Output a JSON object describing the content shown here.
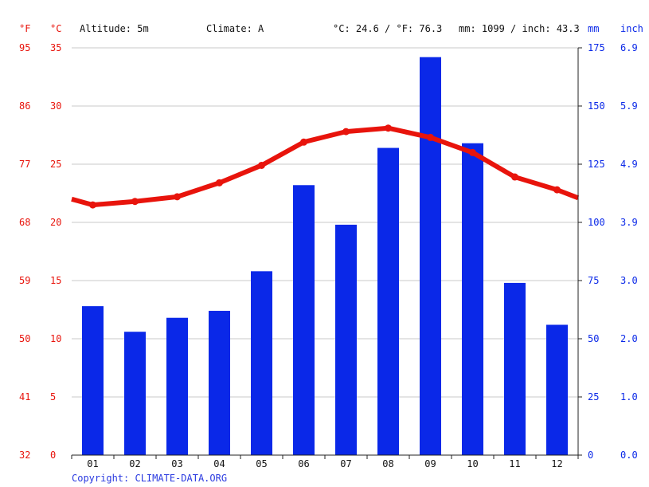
{
  "header": {
    "unit_f": "°F",
    "unit_c": "°C",
    "altitude": "Altitude: 5m",
    "climate": "Climate: A",
    "temp_avg": "°C: 24.6 / °F: 76.3",
    "precip_avg": "mm: 1099 / inch: 43.3",
    "unit_mm": "mm",
    "unit_inch": "inch"
  },
  "footer": {
    "copyright": "Copyright: CLIMATE-DATA.ORG"
  },
  "chart_data": {
    "type": "bar",
    "categories": [
      "01",
      "02",
      "03",
      "04",
      "05",
      "06",
      "07",
      "08",
      "09",
      "10",
      "11",
      "12"
    ],
    "series": [
      {
        "type": "bar",
        "axis": "right",
        "unit": "mm",
        "color": "#0a28e8",
        "values": [
          64,
          53,
          59,
          62,
          79,
          116,
          99,
          132,
          171,
          134,
          74,
          56
        ]
      },
      {
        "type": "line",
        "axis": "left",
        "unit": "°C",
        "color": "#e8140c",
        "values": [
          21.5,
          21.8,
          22.2,
          23.4,
          24.9,
          26.9,
          27.8,
          28.1,
          27.3,
          26.0,
          23.9,
          22.8
        ]
      }
    ],
    "line_edge_values": {
      "start": 22.0,
      "end": 22.1
    },
    "y_left_c": {
      "ylim": [
        0,
        35
      ],
      "ticks": [
        "0",
        "5",
        "10",
        "15",
        "20",
        "25",
        "30",
        "35"
      ]
    },
    "y_left_f": {
      "ticks": [
        "32",
        "41",
        "50",
        "59",
        "68",
        "77",
        "86",
        "95"
      ]
    },
    "y_right_mm": {
      "ylim": [
        0,
        175
      ],
      "ticks": [
        "0",
        "25",
        "50",
        "75",
        "100",
        "125",
        "150",
        "175"
      ]
    },
    "y_right_inch": {
      "ticks": [
        "0.0",
        "1.0",
        "2.0",
        "3.0",
        "3.9",
        "4.9",
        "5.9",
        "6.9"
      ]
    },
    "grid": true,
    "legend": "none"
  }
}
